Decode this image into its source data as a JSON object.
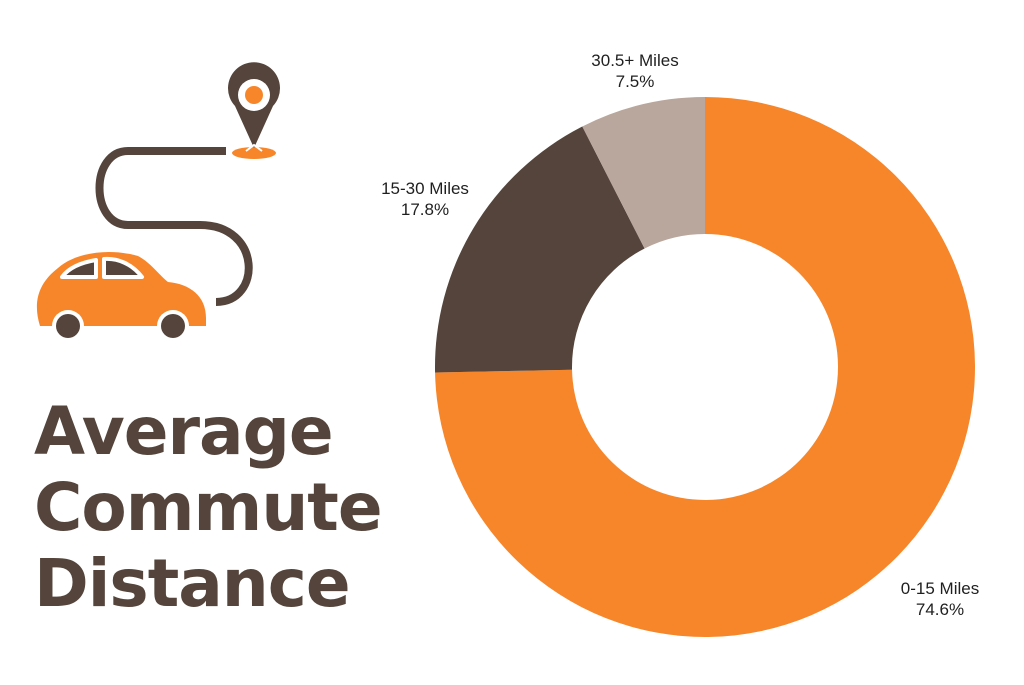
{
  "title": {
    "line1": "Average",
    "line2": "Commute",
    "line3": "Distance"
  },
  "icons": [
    "location-pin-icon",
    "route-path-icon",
    "car-icon"
  ],
  "colors": {
    "orange": "#f7862a",
    "dark_brown": "#54443b",
    "light_taupe": "#b9a69c",
    "text": "#1f1f1f"
  },
  "labels": {
    "seg0_name": "0-15 Miles",
    "seg0_pct": "74.6%",
    "seg1_name": "15-30 Miles",
    "seg1_pct": "17.8%",
    "seg2_name": "30.5+ Miles",
    "seg2_pct": "7.5%"
  },
  "chart_data": {
    "type": "pie",
    "subtype": "donut",
    "title": "Average Commute Distance",
    "categories": [
      "0-15 Miles",
      "15-30 Miles",
      "30.5+ Miles"
    ],
    "values": [
      74.6,
      17.8,
      7.5
    ],
    "unit": "%",
    "colors": [
      "#f7862a",
      "#54443b",
      "#b9a69c"
    ],
    "start_angle": "12 o'clock, clockwise",
    "legend": "none (direct labels)",
    "grid": false
  }
}
